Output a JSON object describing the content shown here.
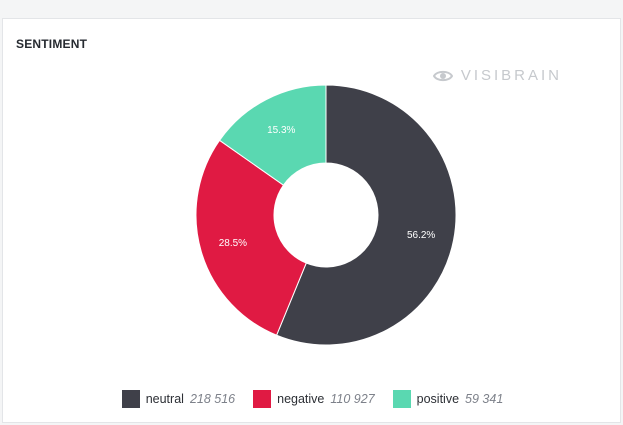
{
  "widget": {
    "title": "SENTIMENT",
    "brand": "VISIBRAIN",
    "brand_icon": "eye-icon"
  },
  "chart_data": {
    "type": "pie",
    "donut": true,
    "title": "SENTIMENT",
    "legend_position": "bottom",
    "slices": [
      {
        "name": "neutral",
        "value": 218516,
        "value_label": "218 516",
        "percent_label": "56.2%",
        "color": "#3f4049"
      },
      {
        "name": "negative",
        "value": 110927,
        "value_label": "110 927",
        "percent_label": "28.5%",
        "color": "#e01a43"
      },
      {
        "name": "positive",
        "value": 59341,
        "value_label": "59 341",
        "percent_label": "15.3%",
        "color": "#5ad8b1"
      }
    ]
  },
  "legend": [
    {
      "name": "neutral",
      "value": "218 516"
    },
    {
      "name": "negative",
      "value": "110 927"
    },
    {
      "name": "positive",
      "value": "59 341"
    }
  ]
}
